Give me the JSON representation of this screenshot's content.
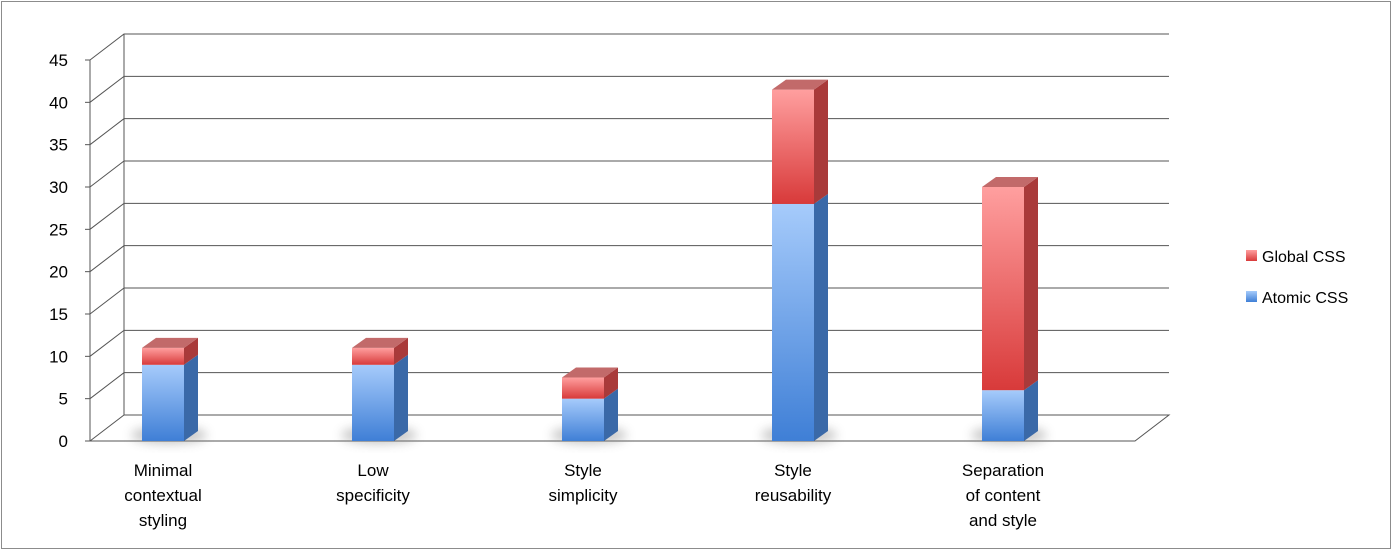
{
  "chart_data": {
    "type": "bar",
    "stacked": true,
    "categories": [
      "Minimal contextual styling",
      "Low specificity",
      "Style simplicity",
      "Style reusability",
      "Separation of content and style"
    ],
    "series": [
      {
        "name": "Atomic CSS",
        "values": [
          9,
          9,
          5,
          28,
          6
        ],
        "color": "#5b9bd5"
      },
      {
        "name": "Global CSS",
        "values": [
          2,
          2,
          2.5,
          13.5,
          24
        ],
        "color": "#e05050"
      }
    ],
    "ylim": [
      0,
      45
    ],
    "y_ticks": [
      "0",
      "5",
      "10",
      "15",
      "20",
      "25",
      "30",
      "35",
      "40",
      "45"
    ],
    "grid": true,
    "legend_position": "right",
    "title": "",
    "xlabel": "",
    "ylabel": ""
  }
}
